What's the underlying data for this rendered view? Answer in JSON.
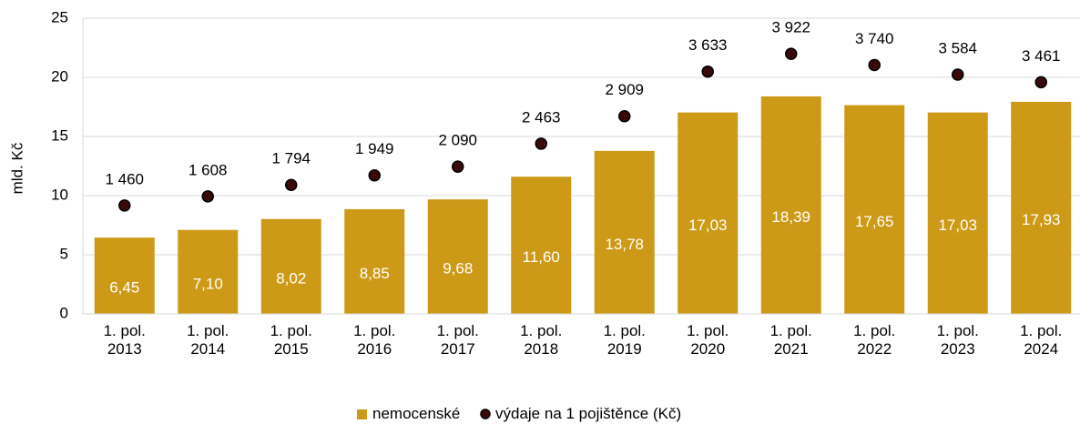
{
  "chart_data": {
    "type": "bar_dot",
    "ylabel": "mld. Kč",
    "categories": [
      "1. pol.\n2013",
      "1. pol.\n2014",
      "1. pol.\n2015",
      "1. pol.\n2016",
      "1. pol.\n2017",
      "1. pol.\n2018",
      "1. pol.\n2019",
      "1. pol.\n2020",
      "1. pol.\n2021",
      "1. pol.\n2022",
      "1. pol.\n2023",
      "1. pol.\n2024"
    ],
    "series": [
      {
        "name": "nemocenské",
        "color": "#cc9a17",
        "kind": "bar",
        "values": [
          6.45,
          7.1,
          8.02,
          8.85,
          9.68,
          11.6,
          13.78,
          17.03,
          18.39,
          17.65,
          17.03,
          17.93
        ],
        "value_labels": [
          "6,45",
          "7,10",
          "8,02",
          "8,85",
          "9,68",
          "11,60",
          "13,78",
          "17,03",
          "18,39",
          "17,65",
          "17,03",
          "17,93"
        ]
      },
      {
        "name": "výdaje na 1 pojištěnce (Kč)",
        "color": "#3a0a0a",
        "kind": "dot",
        "axis": "y2",
        "values": [
          1460,
          1608,
          1794,
          1949,
          2090,
          2463,
          2909,
          3633,
          3922,
          3740,
          3584,
          3461
        ],
        "value_labels": [
          "1 460",
          "1 608",
          "1 794",
          "1 949",
          "2 090",
          "2 463",
          "2 909",
          "3 633",
          "3 922",
          "3 740",
          "3 584",
          "3 461"
        ]
      }
    ],
    "ylim": [
      0,
      25
    ],
    "yticks": [
      0,
      5,
      10,
      15,
      20,
      25
    ],
    "y2lim": [
      -300,
      4500
    ],
    "grid": true,
    "legend": "bottom"
  }
}
